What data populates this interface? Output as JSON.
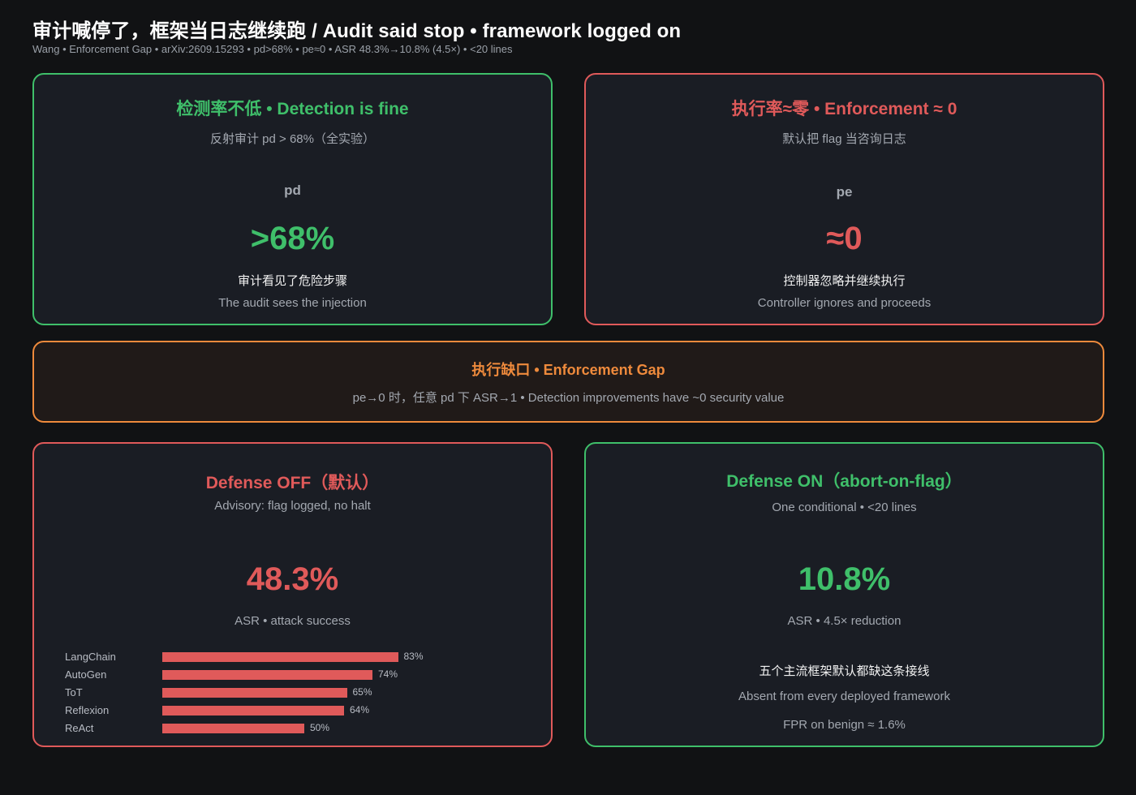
{
  "header": {
    "title": "审计喊停了，框架当日志继续跑 / Audit said stop  •  framework logged on",
    "subtitle": "Wang  •  Enforcement Gap  •  arXiv:2609.15293  •  pd>68%  •  pe≈0  •  ASR 48.3%→10.8% (4.5×)  •  <20 lines"
  },
  "detection": {
    "heading": "检测率不低  •  Detection is fine",
    "caption": "反射审计 pd > 68%（全实验）",
    "metric_label": "pd",
    "metric_value": ">68%",
    "line_cn": "审计看见了危险步骤",
    "line_en": "The audit sees the injection"
  },
  "enforcement": {
    "heading": "执行率≈零  •  Enforcement ≈ 0",
    "caption": "默认把 flag 当咨询日志",
    "metric_label": "pe",
    "metric_value": "≈0",
    "line_cn": "控制器忽略并继续执行",
    "line_en": "Controller ignores and proceeds"
  },
  "gap": {
    "heading": "执行缺口  •  Enforcement Gap",
    "caption": "pe→0 时，任意 pd 下 ASR→1  •  Detection improvements have ~0 security value"
  },
  "defense_off": {
    "heading": "Defense OFF（默认）",
    "caption": "Advisory: flag logged, no halt",
    "metric_value": "48.3%",
    "metric_caption": "ASR  •  attack success"
  },
  "defense_on": {
    "heading": "Defense ON（abort-on-flag）",
    "caption": "One conditional  •  <20 lines",
    "metric_value": "10.8%",
    "metric_caption": "ASR  •  4.5× reduction",
    "line_cn": "五个主流框架默认都缺这条接线",
    "line_en": "Absent from every deployed framework",
    "fpr": "FPR on benign ≈ 1.6%"
  },
  "chart_data": {
    "type": "bar",
    "orientation": "horizontal",
    "categories": [
      "LangChain",
      "AutoGen",
      "ToT",
      "Reflexion",
      "ReAct"
    ],
    "values": [
      83,
      74,
      65,
      64,
      50
    ],
    "value_labels": [
      "83%",
      "74%",
      "65%",
      "64%",
      "50%"
    ],
    "xlim": [
      0,
      100
    ],
    "color": "#e05a5a"
  },
  "colors": {
    "green": "#3fbf6a",
    "red": "#e05a5a",
    "orange": "#ee8a3c",
    "background": "#111214",
    "card": "#1a1d24"
  }
}
